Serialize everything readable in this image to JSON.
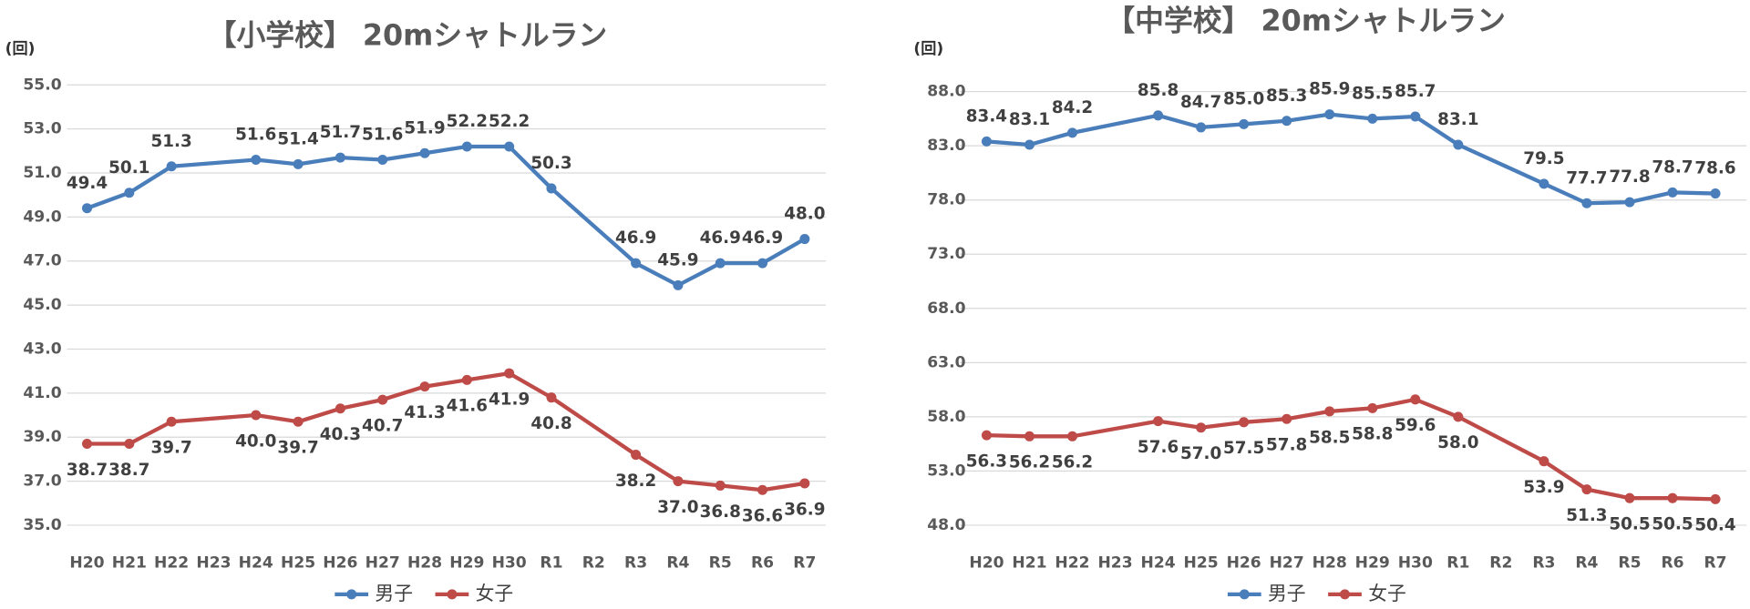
{
  "chart_data": [
    {
      "type": "line",
      "title": "【小学校】 20mシャトルラン",
      "y_unit": "(回)",
      "categories": [
        "H20",
        "H21",
        "H22",
        "H23",
        "H24",
        "H25",
        "H26",
        "H27",
        "H28",
        "H29",
        "H30",
        "R1",
        "R2",
        "R3",
        "R4",
        "R5",
        "R6",
        "R7"
      ],
      "ylim": [
        35,
        55
      ],
      "yticks": [
        {
          "value": 35,
          "label": "35.0"
        },
        {
          "value": 37,
          "label": "37.0"
        },
        {
          "value": 39,
          "label": "39.0"
        },
        {
          "value": 41,
          "label": "41.0"
        },
        {
          "value": 43,
          "label": "43.0"
        },
        {
          "value": 45,
          "label": "45.0"
        },
        {
          "value": 47,
          "label": "47.0"
        },
        {
          "value": 49,
          "label": "49.0"
        },
        {
          "value": 51,
          "label": "51.0"
        },
        {
          "value": 53,
          "label": "53.0"
        },
        {
          "value": 55,
          "label": "55.0"
        }
      ],
      "grid": true,
      "legend": "bottom",
      "series": [
        {
          "name": "男子",
          "color": "#4a7ebb",
          "values": [
            49.4,
            50.1,
            51.3,
            null,
            51.6,
            51.4,
            51.7,
            51.6,
            51.9,
            52.2,
            52.2,
            50.3,
            null,
            46.9,
            45.9,
            46.9,
            46.9,
            48.0
          ],
          "value_labels": [
            "49.4",
            "50.1",
            "51.3",
            null,
            "51.6",
            "51.4",
            "51.7",
            "51.6",
            "51.9",
            "52.2",
            "52.2",
            "50.3",
            null,
            "46.9",
            "45.9",
            "46.9",
            "46.9",
            "48.0"
          ]
        },
        {
          "name": "女子",
          "color": "#be4b48",
          "values": [
            38.7,
            38.7,
            39.7,
            null,
            40.0,
            39.7,
            40.3,
            40.7,
            41.3,
            41.6,
            41.9,
            40.8,
            null,
            38.2,
            37.0,
            36.8,
            36.6,
            36.9
          ],
          "value_labels": [
            "38.7",
            "38.7",
            "39.7",
            null,
            "40.0",
            "39.7",
            "40.3",
            "40.7",
            "41.3",
            "41.6",
            "41.9",
            "40.8",
            null,
            "38.2",
            "37.0",
            "36.8",
            "36.6",
            "36.9"
          ]
        }
      ]
    },
    {
      "type": "line",
      "title": "【中学校】 20mシャトルラン",
      "y_unit": "(回)",
      "categories": [
        "H20",
        "H21",
        "H22",
        "H23",
        "H24",
        "H25",
        "H26",
        "H27",
        "H28",
        "H29",
        "H30",
        "R1",
        "R2",
        "R3",
        "R4",
        "R5",
        "R6",
        "R7"
      ],
      "ylim": [
        48,
        88
      ],
      "yticks": [
        {
          "value": 48,
          "label": "48.0"
        },
        {
          "value": 53,
          "label": "53.0"
        },
        {
          "value": 58,
          "label": "58.0"
        },
        {
          "value": 63,
          "label": "63.0"
        },
        {
          "value": 68,
          "label": "68.0"
        },
        {
          "value": 73,
          "label": "73.0"
        },
        {
          "value": 78,
          "label": "78.0"
        },
        {
          "value": 83,
          "label": "83.0"
        },
        {
          "value": 88,
          "label": "88.0"
        }
      ],
      "grid": true,
      "legend": "bottom",
      "series": [
        {
          "name": "男子",
          "color": "#4a7ebb",
          "values": [
            83.4,
            83.1,
            84.2,
            null,
            85.8,
            84.7,
            85.0,
            85.3,
            85.9,
            85.5,
            85.7,
            83.1,
            null,
            79.5,
            77.7,
            77.8,
            78.7,
            78.6
          ],
          "value_labels": [
            "83.4",
            "83.1",
            "84.2",
            null,
            "85.8",
            "84.7",
            "85.0",
            "85.3",
            "85.9",
            "85.5",
            "85.7",
            "83.1",
            null,
            "79.5",
            "77.7",
            "77.8",
            "78.7",
            "78.6"
          ]
        },
        {
          "name": "女子",
          "color": "#be4b48",
          "values": [
            56.3,
            56.2,
            56.2,
            null,
            57.6,
            57.0,
            57.5,
            57.8,
            58.5,
            58.8,
            59.6,
            58.0,
            null,
            53.9,
            51.3,
            50.5,
            50.5,
            50.4
          ],
          "value_labels": [
            "56.3",
            "56.2",
            "56.2",
            null,
            "57.6",
            "57.0",
            "57.5",
            "57.8",
            "58.5",
            "58.8",
            "59.6",
            "58.0",
            null,
            "53.9",
            "51.3",
            "50.5",
            "50.5",
            "50.4"
          ]
        }
      ]
    }
  ]
}
